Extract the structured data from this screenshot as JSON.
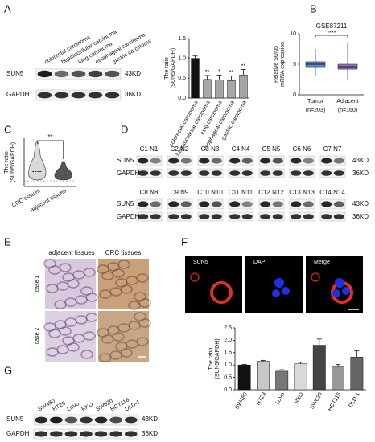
{
  "panel_labels": [
    "A",
    "B",
    "C",
    "D",
    "E",
    "F",
    "G"
  ],
  "blot_a": {
    "lanes": [
      "colorectal carcinoma",
      "hepatocellular carcinoma",
      "lung carcinoma",
      "esophageal carcinoma",
      "gastric carcinoma"
    ],
    "rows": [
      "SUN5",
      "GAPDH"
    ],
    "sizes": [
      "43KD",
      "36KD"
    ]
  },
  "blot_d": {
    "pairs": [
      "C1 N1",
      "C2 N2",
      "C3 N3",
      "C4 N4",
      "C5 N5",
      "C6 N6",
      "C7 N7",
      "C8 N8",
      "C9 N9",
      "C10 N10",
      "C11 N11",
      "C12 N12",
      "C13 N13",
      "C14 N14"
    ],
    "rows": [
      "SUN5",
      "GAPDH"
    ],
    "sizes": [
      "43KD",
      "36KD"
    ]
  },
  "blot_g": {
    "lanes": [
      "SW480",
      "HT29",
      "LoVo",
      "RKO",
      "SW620",
      "HCT116",
      "DLD-1"
    ],
    "rows": [
      "SUN5",
      "GAPDH"
    ],
    "sizes": [
      "43KD",
      "36KD"
    ]
  },
  "histology": {
    "columns": [
      "adjacent tissues",
      "CRC tissues"
    ],
    "rows": [
      "case 1",
      "case 2"
    ]
  },
  "fluorescence": {
    "channels": [
      "SUN5",
      "DAPI",
      "Merge"
    ]
  },
  "chart_data": [
    {
      "type": "bar",
      "ylabel": [
        "The ratio",
        "(SUN5/GAPDH)"
      ],
      "categories": [
        "colorectal carcinoma",
        "hepatocellular carcinoma",
        "lung carcinoma",
        "esophageal carcinoma",
        "gastric carcinoma"
      ],
      "values": [
        1.0,
        0.47,
        0.46,
        0.44,
        0.58
      ],
      "errors": [
        0.06,
        0.1,
        0.12,
        0.12,
        0.14
      ],
      "annotations": [
        null,
        "**",
        "*",
        "**",
        "**"
      ],
      "colors": [
        "#111111",
        "#a6a6a6",
        "#a6a6a6",
        "#a6a6a6",
        "#a6a6a6"
      ],
      "ylim": [
        0,
        1.5
      ],
      "yticks": [
        {
          "value": 0,
          "label": "0.0"
        },
        {
          "value": 0.5,
          "label": "0.5"
        },
        {
          "value": 1,
          "label": "1.0"
        },
        {
          "value": 1.5,
          "label": "1.5"
        }
      ]
    },
    {
      "type": "box",
      "title": "GSE87211",
      "ylabel": [
        "Relative SUN5",
        "mRNA expression"
      ],
      "categories": [
        "Tumor",
        "Adjacent"
      ],
      "counts": [
        "(n=203)",
        "(n=160)"
      ],
      "boxes": [
        {
          "min": 3,
          "q1": 4.6,
          "median": 5,
          "q3": 5.4,
          "max": 7.5
        },
        {
          "min": 2.5,
          "q1": 4.2,
          "median": 4.6,
          "q3": 5,
          "max": 8.5
        }
      ],
      "colors": [
        "#5b8fd6",
        "#9a6fc0"
      ],
      "significance": "****",
      "ylim": [
        0,
        10
      ],
      "yticks": [
        0,
        5,
        10
      ]
    },
    {
      "type": "violin",
      "ylabel": [
        "The ratio",
        "(SUN5/GAPDH)"
      ],
      "categories": [
        "CRC tissues",
        "adjacent tissues"
      ],
      "min": [
        0.1,
        0.1
      ],
      "median": [
        1.0,
        0.75
      ],
      "max": [
        4.2,
        2.1
      ],
      "colors": [
        "#d9d9d9",
        "#555555"
      ],
      "significance": "**",
      "ylim": [
        -0.6,
        4.6
      ]
    },
    {
      "type": "bar",
      "ylabel": [
        "The ratio",
        "(SUN5/GAPDH)"
      ],
      "categories": [
        "SW480",
        "HT29",
        "LoVo",
        "RKO",
        "SW620",
        "HCT116",
        "DLD-1"
      ],
      "values": [
        1.0,
        1.15,
        0.75,
        1.05,
        1.8,
        0.92,
        1.32
      ],
      "errors": [
        0.02,
        0.04,
        0.06,
        0.06,
        0.25,
        0.1,
        0.25
      ],
      "annotations": [
        null,
        null,
        null,
        null,
        null,
        null,
        null
      ],
      "colors": [
        "#111111",
        "#c8c8c8",
        "#777777",
        "#d9d9d9",
        "#444444",
        "#999999",
        "#666666"
      ],
      "ylim": [
        0,
        2.5
      ],
      "yticks": [
        {
          "value": 0,
          "label": "0.0"
        },
        {
          "value": 0.5,
          "label": "0.5"
        },
        {
          "value": 1,
          "label": "1.0"
        },
        {
          "value": 1.5,
          "label": "1.5"
        },
        {
          "value": 2,
          "label": "2.0"
        },
        {
          "value": 2.5,
          "label": "2.5"
        }
      ]
    }
  ]
}
